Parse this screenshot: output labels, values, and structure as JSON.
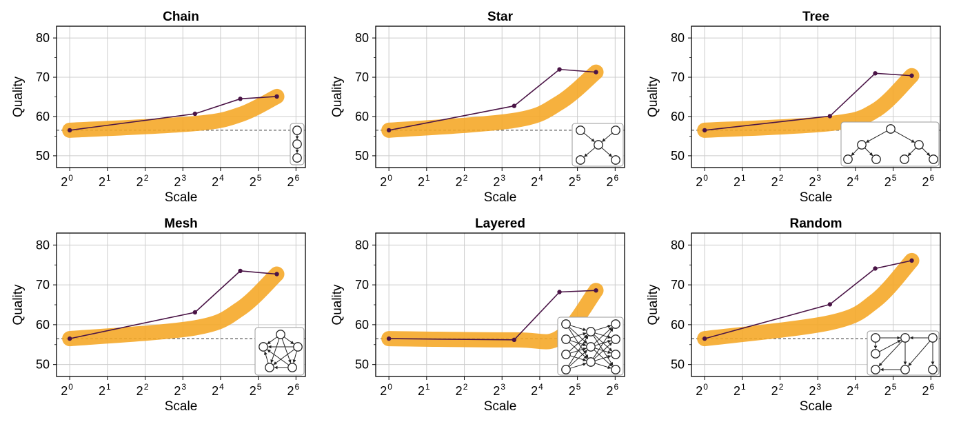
{
  "colors": {
    "band": "#f5a623",
    "line": "#4a1446",
    "grid": "#cccccc",
    "baseline": "#333333"
  },
  "chart_data": [
    {
      "type": "line",
      "title": "Chain",
      "xlabel": "Scale",
      "ylabel": "Quality",
      "x_scale": "log2",
      "x_ticks": [
        "2^0",
        "2^1",
        "2^2",
        "2^3",
        "2^4",
        "2^5",
        "2^6"
      ],
      "y_ticks": [
        50,
        60,
        70,
        80
      ],
      "ylim": [
        47,
        83
      ],
      "xlim_exp": [
        -0.35,
        6.25
      ],
      "grid": true,
      "baseline": 56.5,
      "x": [
        1,
        10,
        23,
        45
      ],
      "y": [
        56.5,
        60.7,
        64.5,
        65.1
      ],
      "band_y": [
        56.5,
        58.2,
        60.5,
        65.1
      ],
      "inset": "chain"
    },
    {
      "type": "line",
      "title": "Star",
      "xlabel": "Scale",
      "ylabel": "Quality",
      "x_scale": "log2",
      "x_ticks": [
        "2^0",
        "2^1",
        "2^2",
        "2^3",
        "2^4",
        "2^5",
        "2^6"
      ],
      "y_ticks": [
        50,
        60,
        70,
        80
      ],
      "ylim": [
        47,
        83
      ],
      "xlim_exp": [
        -0.35,
        6.25
      ],
      "grid": true,
      "baseline": 56.5,
      "x": [
        1,
        10,
        23,
        45
      ],
      "y": [
        56.5,
        62.7,
        72.0,
        71.3
      ],
      "band_y": [
        56.5,
        59.0,
        63.5,
        71.3
      ],
      "inset": "star"
    },
    {
      "type": "line",
      "title": "Tree",
      "xlabel": "Scale",
      "ylabel": "Quality",
      "x_scale": "log2",
      "x_ticks": [
        "2^0",
        "2^1",
        "2^2",
        "2^3",
        "2^4",
        "2^5",
        "2^6"
      ],
      "y_ticks": [
        50,
        60,
        70,
        80
      ],
      "ylim": [
        47,
        83
      ],
      "xlim_exp": [
        -0.35,
        6.25
      ],
      "grid": true,
      "baseline": 56.5,
      "x": [
        1,
        10,
        23,
        45
      ],
      "y": [
        56.5,
        60.1,
        71.0,
        70.4
      ],
      "band_y": [
        56.5,
        58.2,
        61.5,
        70.4
      ],
      "inset": "tree"
    },
    {
      "type": "line",
      "title": "Mesh",
      "xlabel": "Scale",
      "ylabel": "Quality",
      "x_scale": "log2",
      "x_ticks": [
        "2^0",
        "2^1",
        "2^2",
        "2^3",
        "2^4",
        "2^5",
        "2^6"
      ],
      "y_ticks": [
        50,
        60,
        70,
        80
      ],
      "ylim": [
        47,
        83
      ],
      "xlim_exp": [
        -0.35,
        6.25
      ],
      "grid": true,
      "baseline": 56.5,
      "x": [
        1,
        10,
        23,
        45
      ],
      "y": [
        56.5,
        63.1,
        73.5,
        72.7
      ],
      "band_y": [
        56.5,
        59.2,
        64.0,
        72.7
      ],
      "inset": "mesh"
    },
    {
      "type": "line",
      "title": "Layered",
      "xlabel": "Scale",
      "ylabel": "Quality",
      "x_scale": "log2",
      "x_ticks": [
        "2^0",
        "2^1",
        "2^2",
        "2^3",
        "2^4",
        "2^5",
        "2^6"
      ],
      "y_ticks": [
        50,
        60,
        70,
        80
      ],
      "ylim": [
        47,
        83
      ],
      "xlim_exp": [
        -0.35,
        6.25
      ],
      "grid": true,
      "baseline": 56.5,
      "x": [
        1,
        10,
        23,
        45
      ],
      "y": [
        56.5,
        56.2,
        68.2,
        68.6
      ],
      "band_y": [
        56.5,
        56.2,
        56.8,
        68.6
      ],
      "inset": "layered"
    },
    {
      "type": "line",
      "title": "Random",
      "xlabel": "Scale",
      "ylabel": "Quality",
      "x_scale": "log2",
      "x_ticks": [
        "2^0",
        "2^1",
        "2^2",
        "2^3",
        "2^4",
        "2^5",
        "2^6"
      ],
      "y_ticks": [
        50,
        60,
        70,
        80
      ],
      "ylim": [
        47,
        83
      ],
      "xlim_exp": [
        -0.35,
        6.25
      ],
      "grid": true,
      "baseline": 56.5,
      "x": [
        1,
        10,
        23,
        45
      ],
      "y": [
        56.5,
        65.1,
        74.1,
        76.1
      ],
      "band_y": [
        56.5,
        60.5,
        66.0,
        76.1
      ],
      "inset": "random"
    }
  ]
}
